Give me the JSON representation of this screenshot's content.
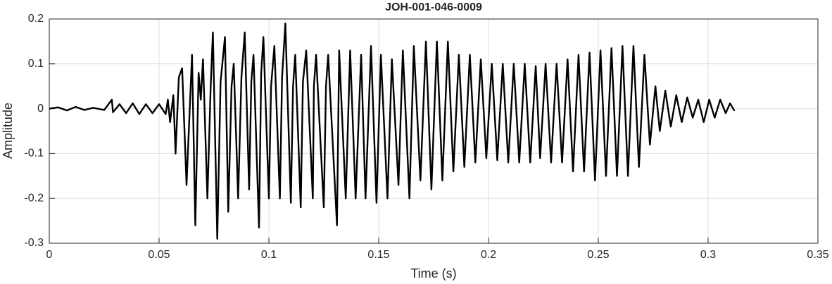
{
  "chart_data": {
    "type": "line",
    "title": "JOH-001-046-0009",
    "xlabel": "Time (s)",
    "ylabel": "Amplitude",
    "xlim": [
      0,
      0.35
    ],
    "xticks": [
      0,
      0.05,
      0.1,
      0.15,
      0.2,
      0.25,
      0.3,
      0.35
    ],
    "ylim": [
      -0.3,
      0.2
    ],
    "yticks": [
      -0.3,
      -0.2,
      -0.1,
      0,
      0.1,
      0.2
    ],
    "grid": true,
    "color": "#000000",
    "x": [
      0,
      0.004,
      0.008,
      0.012,
      0.016,
      0.02,
      0.025,
      0.0285,
      0.029,
      0.032,
      0.035,
      0.038,
      0.041,
      0.044,
      0.047,
      0.05,
      0.053,
      0.054,
      0.055,
      0.0565,
      0.0575,
      0.059,
      0.0605,
      0.0625,
      0.065,
      0.0665,
      0.068,
      0.069,
      0.07,
      0.072,
      0.0735,
      0.0745,
      0.0765,
      0.078,
      0.08,
      0.0815,
      0.083,
      0.084,
      0.086,
      0.0875,
      0.089,
      0.091,
      0.092,
      0.093,
      0.0955,
      0.0965,
      0.0975,
      0.1,
      0.101,
      0.1025,
      0.105,
      0.106,
      0.1075,
      0.11,
      0.111,
      0.112,
      0.1145,
      0.1155,
      0.117,
      0.12,
      0.1205,
      0.1215,
      0.125,
      0.126,
      0.127,
      0.131,
      0.132,
      0.135,
      0.137,
      0.1395,
      0.142,
      0.144,
      0.1465,
      0.149,
      0.151,
      0.154,
      0.156,
      0.159,
      0.161,
      0.164,
      0.166,
      0.169,
      0.1715,
      0.174,
      0.1765,
      0.179,
      0.1815,
      0.184,
      0.1865,
      0.189,
      0.1915,
      0.194,
      0.1965,
      0.199,
      0.2015,
      0.204,
      0.2065,
      0.209,
      0.2115,
      0.214,
      0.2165,
      0.219,
      0.2215,
      0.2235,
      0.226,
      0.2285,
      0.231,
      0.2335,
      0.236,
      0.2385,
      0.241,
      0.2435,
      0.246,
      0.2485,
      0.251,
      0.2535,
      0.256,
      0.2585,
      0.261,
      0.2635,
      0.266,
      0.2685,
      0.271,
      0.2735,
      0.276,
      0.278,
      0.2805,
      0.283,
      0.2855,
      0.288,
      0.2905,
      0.293,
      0.2955,
      0.298,
      0.3005,
      0.303,
      0.3055,
      0.308,
      0.31,
      0.312
    ],
    "values": [
      0,
      0.003,
      -0.004,
      0.004,
      -0.003,
      0.002,
      -0.003,
      0.02,
      -0.008,
      0.01,
      -0.01,
      0.012,
      -0.012,
      0.01,
      -0.01,
      0.01,
      -0.012,
      0.02,
      -0.03,
      0.03,
      -0.1,
      0.07,
      0.09,
      -0.17,
      0.12,
      -0.26,
      0.08,
      0.02,
      0.11,
      -0.2,
      0.05,
      0.17,
      -0.29,
      0.06,
      0.16,
      -0.23,
      0.05,
      0.1,
      -0.2,
      0.07,
      0.17,
      -0.18,
      0.06,
      0.12,
      -0.265,
      0.08,
      0.16,
      -0.2,
      0.05,
      0.14,
      -0.2,
      0.07,
      0.19,
      -0.21,
      0.05,
      0.12,
      -0.22,
      0.06,
      0.13,
      -0.2,
      0.05,
      0.12,
      -0.22,
      0.05,
      0.12,
      -0.26,
      0.13,
      -0.2,
      0.13,
      -0.2,
      0.12,
      -0.2,
      0.14,
      -0.21,
      0.12,
      -0.2,
      0.11,
      -0.17,
      0.13,
      -0.2,
      0.14,
      -0.16,
      0.15,
      -0.18,
      0.15,
      -0.16,
      0.15,
      -0.14,
      0.12,
      -0.13,
      0.12,
      -0.12,
      0.11,
      -0.11,
      0.1,
      -0.115,
      0.1,
      -0.12,
      0.1,
      -0.12,
      0.1,
      -0.12,
      0.095,
      -0.11,
      0.1,
      -0.12,
      0.1,
      -0.12,
      0.11,
      -0.14,
      0.12,
      -0.14,
      0.125,
      -0.16,
      0.13,
      -0.15,
      0.135,
      -0.15,
      0.14,
      -0.15,
      0.14,
      -0.13,
      0.12,
      -0.08,
      0.05,
      -0.05,
      0.04,
      -0.04,
      0.03,
      -0.03,
      0.025,
      -0.02,
      0.02,
      -0.03,
      0.02,
      -0.02,
      0.02,
      -0.01,
      0.012,
      -0.005
    ]
  }
}
